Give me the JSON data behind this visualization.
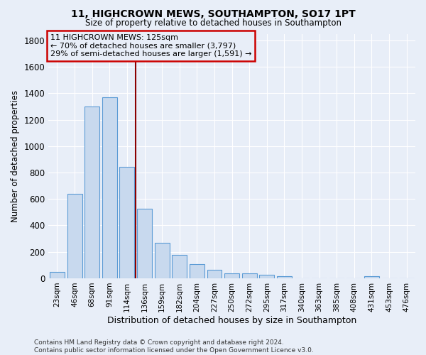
{
  "title_line1": "11, HIGHCROWN MEWS, SOUTHAMPTON, SO17 1PT",
  "title_line2": "Size of property relative to detached houses in Southampton",
  "xlabel": "Distribution of detached houses by size in Southampton",
  "ylabel": "Number of detached properties",
  "categories": [
    "23sqm",
    "46sqm",
    "68sqm",
    "91sqm",
    "114sqm",
    "136sqm",
    "159sqm",
    "182sqm",
    "204sqm",
    "227sqm",
    "250sqm",
    "272sqm",
    "295sqm",
    "317sqm",
    "340sqm",
    "363sqm",
    "385sqm",
    "408sqm",
    "431sqm",
    "453sqm",
    "476sqm"
  ],
  "values": [
    50,
    640,
    1300,
    1370,
    845,
    525,
    270,
    175,
    105,
    65,
    38,
    35,
    28,
    15,
    0,
    0,
    0,
    0,
    15,
    0,
    0
  ],
  "bar_color": "#c8d9ee",
  "bar_edge_color": "#5b9bd5",
  "bg_color": "#e8eef8",
  "grid_color": "#d0d8e8",
  "vline_x": 4.5,
  "vline_color": "#8b0000",
  "annotation_text": "11 HIGHCROWN MEWS: 125sqm\n← 70% of detached houses are smaller (3,797)\n29% of semi-detached houses are larger (1,591) →",
  "annotation_box_facecolor": "#e8eef8",
  "annotation_box_edgecolor": "#cc0000",
  "ylim": [
    0,
    1850
  ],
  "yticks": [
    0,
    200,
    400,
    600,
    800,
    1000,
    1200,
    1400,
    1600,
    1800
  ],
  "footer_line1": "Contains HM Land Registry data © Crown copyright and database right 2024.",
  "footer_line2": "Contains public sector information licensed under the Open Government Licence v3.0."
}
